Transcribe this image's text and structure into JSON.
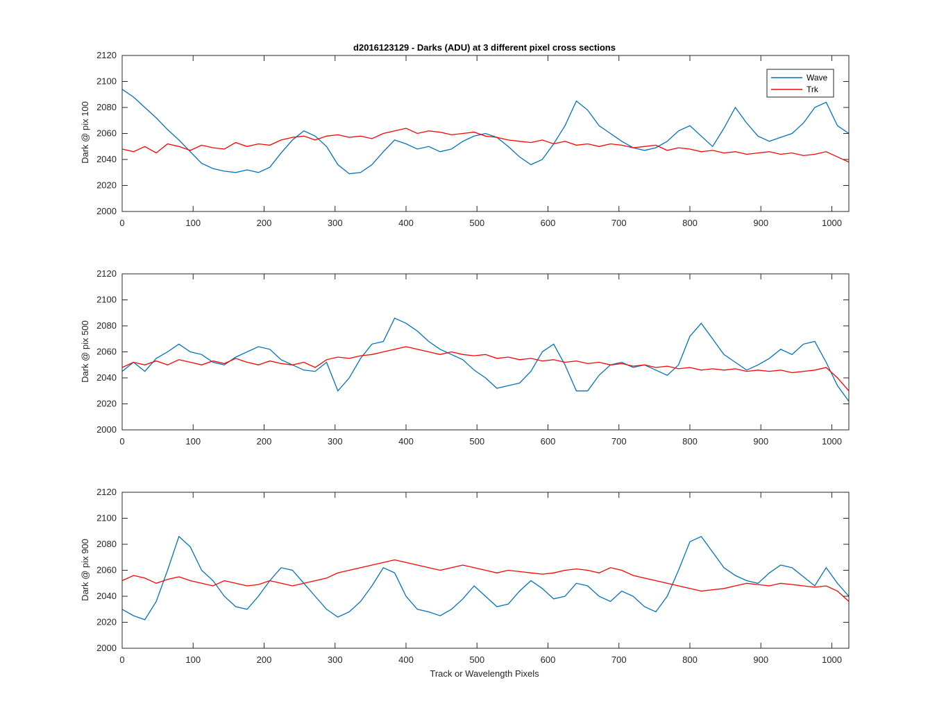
{
  "title": "d2016123129 - Darks (ADU) at 3 different pixel cross sections",
  "colors": {
    "wave": "#0072BD",
    "trk": "#FF0000",
    "axis": "#262626"
  },
  "legend": {
    "position": "top-right",
    "entries": [
      "Wave",
      "Trk"
    ]
  },
  "chart_data": [
    {
      "type": "line",
      "ylabel": "Dark @ pix 100",
      "xlabel": "",
      "xlim": [
        0,
        1024
      ],
      "ylim": [
        2000,
        2120
      ],
      "xticks": [
        0,
        100,
        200,
        300,
        400,
        500,
        600,
        700,
        800,
        900,
        1000
      ],
      "yticks": [
        2000,
        2020,
        2040,
        2060,
        2080,
        2100,
        2120
      ],
      "grid": false,
      "legend": "top-right",
      "series": [
        {
          "name": "Wave",
          "x": [
            0,
            16,
            32,
            48,
            64,
            80,
            96,
            112,
            128,
            144,
            160,
            176,
            192,
            208,
            224,
            240,
            256,
            272,
            288,
            304,
            320,
            336,
            352,
            368,
            384,
            400,
            416,
            432,
            448,
            464,
            480,
            496,
            512,
            528,
            544,
            560,
            576,
            592,
            608,
            624,
            640,
            656,
            672,
            688,
            704,
            720,
            736,
            752,
            768,
            784,
            800,
            816,
            832,
            848,
            864,
            880,
            896,
            912,
            928,
            944,
            960,
            976,
            992,
            1008,
            1024
          ],
          "values": [
            2094,
            2088,
            2080,
            2072,
            2063,
            2055,
            2046,
            2037,
            2033,
            2031,
            2030,
            2032,
            2030,
            2034,
            2045,
            2055,
            2062,
            2058,
            2050,
            2036,
            2029,
            2030,
            2036,
            2046,
            2055,
            2052,
            2048,
            2050,
            2046,
            2048,
            2054,
            2058,
            2060,
            2057,
            2050,
            2042,
            2036,
            2040,
            2052,
            2066,
            2085,
            2078,
            2066,
            2060,
            2054,
            2049,
            2047,
            2049,
            2054,
            2062,
            2066,
            2058,
            2050,
            2064,
            2080,
            2068,
            2058,
            2054,
            2057,
            2060,
            2068,
            2080,
            2084,
            2066,
            2060
          ]
        },
        {
          "name": "Trk",
          "x": [
            0,
            16,
            32,
            48,
            64,
            80,
            96,
            112,
            128,
            144,
            160,
            176,
            192,
            208,
            224,
            240,
            256,
            272,
            288,
            304,
            320,
            336,
            352,
            368,
            384,
            400,
            416,
            432,
            448,
            464,
            480,
            496,
            512,
            528,
            544,
            560,
            576,
            592,
            608,
            624,
            640,
            656,
            672,
            688,
            704,
            720,
            736,
            752,
            768,
            784,
            800,
            816,
            832,
            848,
            864,
            880,
            896,
            912,
            928,
            944,
            960,
            976,
            992,
            1008,
            1024
          ],
          "values": [
            2048,
            2046,
            2050,
            2045,
            2052,
            2050,
            2047,
            2051,
            2049,
            2048,
            2053,
            2050,
            2052,
            2051,
            2055,
            2057,
            2058,
            2055,
            2058,
            2059,
            2057,
            2058,
            2056,
            2060,
            2062,
            2064,
            2060,
            2062,
            2061,
            2059,
            2060,
            2061,
            2058,
            2057,
            2055,
            2054,
            2053,
            2055,
            2052,
            2054,
            2051,
            2052,
            2050,
            2052,
            2051,
            2049,
            2050,
            2051,
            2047,
            2049,
            2048,
            2046,
            2047,
            2045,
            2046,
            2044,
            2045,
            2046,
            2044,
            2045,
            2043,
            2044,
            2046,
            2042,
            2038
          ]
        }
      ]
    },
    {
      "type": "line",
      "ylabel": "Dark @ pix 500",
      "xlabel": "",
      "xlim": [
        0,
        1024
      ],
      "ylim": [
        2000,
        2120
      ],
      "xticks": [
        0,
        100,
        200,
        300,
        400,
        500,
        600,
        700,
        800,
        900,
        1000
      ],
      "yticks": [
        2000,
        2020,
        2040,
        2060,
        2080,
        2100,
        2120
      ],
      "grid": false,
      "series": [
        {
          "name": "Wave",
          "x": [
            0,
            16,
            32,
            48,
            64,
            80,
            96,
            112,
            128,
            144,
            160,
            176,
            192,
            208,
            224,
            240,
            256,
            272,
            288,
            304,
            320,
            336,
            352,
            368,
            384,
            400,
            416,
            432,
            448,
            464,
            480,
            496,
            512,
            528,
            544,
            560,
            576,
            592,
            608,
            624,
            640,
            656,
            672,
            688,
            704,
            720,
            736,
            752,
            768,
            784,
            800,
            816,
            832,
            848,
            864,
            880,
            896,
            912,
            928,
            944,
            960,
            976,
            992,
            1008,
            1024
          ],
          "values": [
            2045,
            2052,
            2045,
            2055,
            2060,
            2066,
            2060,
            2058,
            2052,
            2050,
            2056,
            2060,
            2064,
            2062,
            2054,
            2050,
            2046,
            2045,
            2052,
            2030,
            2040,
            2055,
            2066,
            2068,
            2086,
            2082,
            2076,
            2068,
            2062,
            2058,
            2054,
            2046,
            2040,
            2032,
            2034,
            2036,
            2045,
            2060,
            2066,
            2050,
            2030,
            2030,
            2042,
            2050,
            2052,
            2048,
            2050,
            2046,
            2042,
            2050,
            2072,
            2082,
            2070,
            2058,
            2052,
            2046,
            2050,
            2055,
            2062,
            2058,
            2066,
            2068,
            2052,
            2034,
            2022
          ]
        },
        {
          "name": "Trk",
          "x": [
            0,
            16,
            32,
            48,
            64,
            80,
            96,
            112,
            128,
            144,
            160,
            176,
            192,
            208,
            224,
            240,
            256,
            272,
            288,
            304,
            320,
            336,
            352,
            368,
            384,
            400,
            416,
            432,
            448,
            464,
            480,
            496,
            512,
            528,
            544,
            560,
            576,
            592,
            608,
            624,
            640,
            656,
            672,
            688,
            704,
            720,
            736,
            752,
            768,
            784,
            800,
            816,
            832,
            848,
            864,
            880,
            896,
            912,
            928,
            944,
            960,
            976,
            992,
            1008,
            1024
          ],
          "values": [
            2048,
            2052,
            2050,
            2053,
            2050,
            2054,
            2052,
            2050,
            2053,
            2051,
            2055,
            2052,
            2050,
            2053,
            2051,
            2050,
            2052,
            2048,
            2054,
            2056,
            2055,
            2057,
            2058,
            2060,
            2062,
            2064,
            2062,
            2060,
            2058,
            2060,
            2058,
            2057,
            2058,
            2055,
            2056,
            2054,
            2055,
            2053,
            2054,
            2052,
            2053,
            2051,
            2052,
            2050,
            2051,
            2049,
            2050,
            2048,
            2049,
            2047,
            2048,
            2046,
            2047,
            2046,
            2047,
            2045,
            2046,
            2045,
            2046,
            2044,
            2045,
            2046,
            2048,
            2040,
            2030
          ]
        }
      ]
    },
    {
      "type": "line",
      "ylabel": "Dark @ pix 900",
      "xlabel": "Track or Wavelength Pixels",
      "xlim": [
        0,
        1024
      ],
      "ylim": [
        2000,
        2120
      ],
      "xticks": [
        0,
        100,
        200,
        300,
        400,
        500,
        600,
        700,
        800,
        900,
        1000
      ],
      "yticks": [
        2000,
        2020,
        2040,
        2060,
        2080,
        2100,
        2120
      ],
      "grid": false,
      "series": [
        {
          "name": "Wave",
          "x": [
            0,
            16,
            32,
            48,
            64,
            80,
            96,
            112,
            128,
            144,
            160,
            176,
            192,
            208,
            224,
            240,
            256,
            272,
            288,
            304,
            320,
            336,
            352,
            368,
            384,
            400,
            416,
            432,
            448,
            464,
            480,
            496,
            512,
            528,
            544,
            560,
            576,
            592,
            608,
            624,
            640,
            656,
            672,
            688,
            704,
            720,
            736,
            752,
            768,
            784,
            800,
            816,
            832,
            848,
            864,
            880,
            896,
            912,
            928,
            944,
            960,
            976,
            992,
            1008,
            1024
          ],
          "values": [
            2030,
            2025,
            2022,
            2036,
            2060,
            2086,
            2078,
            2060,
            2052,
            2040,
            2032,
            2030,
            2040,
            2052,
            2062,
            2060,
            2050,
            2040,
            2030,
            2024,
            2028,
            2036,
            2048,
            2062,
            2058,
            2040,
            2030,
            2028,
            2025,
            2030,
            2038,
            2048,
            2040,
            2032,
            2034,
            2044,
            2052,
            2046,
            2038,
            2040,
            2050,
            2048,
            2040,
            2036,
            2044,
            2040,
            2032,
            2028,
            2040,
            2060,
            2082,
            2086,
            2074,
            2062,
            2056,
            2052,
            2050,
            2058,
            2064,
            2062,
            2055,
            2048,
            2062,
            2050,
            2040
          ]
        },
        {
          "name": "Trk",
          "x": [
            0,
            16,
            32,
            48,
            64,
            80,
            96,
            112,
            128,
            144,
            160,
            176,
            192,
            208,
            224,
            240,
            256,
            272,
            288,
            304,
            320,
            336,
            352,
            368,
            384,
            400,
            416,
            432,
            448,
            464,
            480,
            496,
            512,
            528,
            544,
            560,
            576,
            592,
            608,
            624,
            640,
            656,
            672,
            688,
            704,
            720,
            736,
            752,
            768,
            784,
            800,
            816,
            832,
            848,
            864,
            880,
            896,
            912,
            928,
            944,
            960,
            976,
            992,
            1008,
            1024
          ],
          "values": [
            2052,
            2056,
            2054,
            2050,
            2053,
            2055,
            2052,
            2050,
            2048,
            2052,
            2050,
            2048,
            2049,
            2052,
            2050,
            2048,
            2050,
            2052,
            2054,
            2058,
            2060,
            2062,
            2064,
            2066,
            2068,
            2066,
            2064,
            2062,
            2060,
            2062,
            2064,
            2062,
            2060,
            2058,
            2060,
            2059,
            2058,
            2057,
            2058,
            2060,
            2061,
            2060,
            2058,
            2062,
            2060,
            2056,
            2054,
            2052,
            2050,
            2048,
            2046,
            2044,
            2045,
            2046,
            2048,
            2050,
            2049,
            2048,
            2050,
            2049,
            2048,
            2047,
            2048,
            2044,
            2036
          ]
        }
      ]
    }
  ]
}
